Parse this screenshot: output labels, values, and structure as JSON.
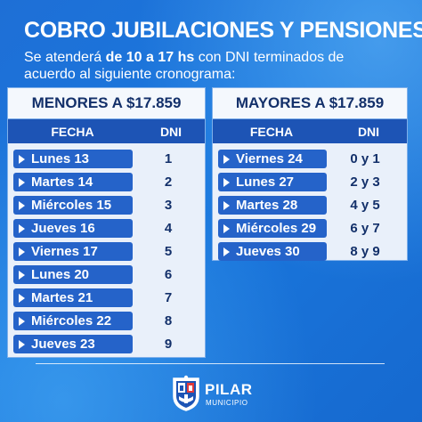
{
  "title": "COBRO JUBILACIONES Y PENSIONES",
  "subtitle": {
    "before": "Se atenderá ",
    "bold": "de 10 a 17 hs",
    "after": " con DNI terminados de acuerdo al siguiente cronograma:"
  },
  "left_table": {
    "header": "MENORES A $17.859",
    "col_fecha": "FECHA",
    "col_dni": "DNI",
    "rows": [
      {
        "fecha": "Lunes 13",
        "dni": "1"
      },
      {
        "fecha": "Martes 14",
        "dni": "2"
      },
      {
        "fecha": "Miércoles 15",
        "dni": "3"
      },
      {
        "fecha": "Jueves 16",
        "dni": "4"
      },
      {
        "fecha": "Viernes 17",
        "dni": "5"
      },
      {
        "fecha": "Lunes 20",
        "dni": "6"
      },
      {
        "fecha": "Martes 21",
        "dni": "7"
      },
      {
        "fecha": "Miércoles 22",
        "dni": "8"
      },
      {
        "fecha": "Jueves 23",
        "dni": "9"
      }
    ]
  },
  "right_table": {
    "header": "MAYORES A $17.859",
    "col_fecha": "FECHA",
    "col_dni": "DNI",
    "rows": [
      {
        "fecha": "Viernes 24",
        "dni": "0 y 1"
      },
      {
        "fecha": "Lunes 27",
        "dni": "2 y 3"
      },
      {
        "fecha": "Martes 28",
        "dni": "4 y 5"
      },
      {
        "fecha": "Miércoles 29",
        "dni": "6 y 7"
      },
      {
        "fecha": "Jueves 30",
        "dni": "8 y 9"
      }
    ]
  },
  "logo": {
    "name": "PILAR",
    "sub": "MUNICIPIO",
    "icon": "municipal-shield-icon"
  },
  "colors": {
    "background": "#1b73d8",
    "table_bg": "#e9f0fa",
    "column_header": "#1d54b5",
    "date_pill": "#2563c9",
    "text_dark": "#13306a"
  }
}
